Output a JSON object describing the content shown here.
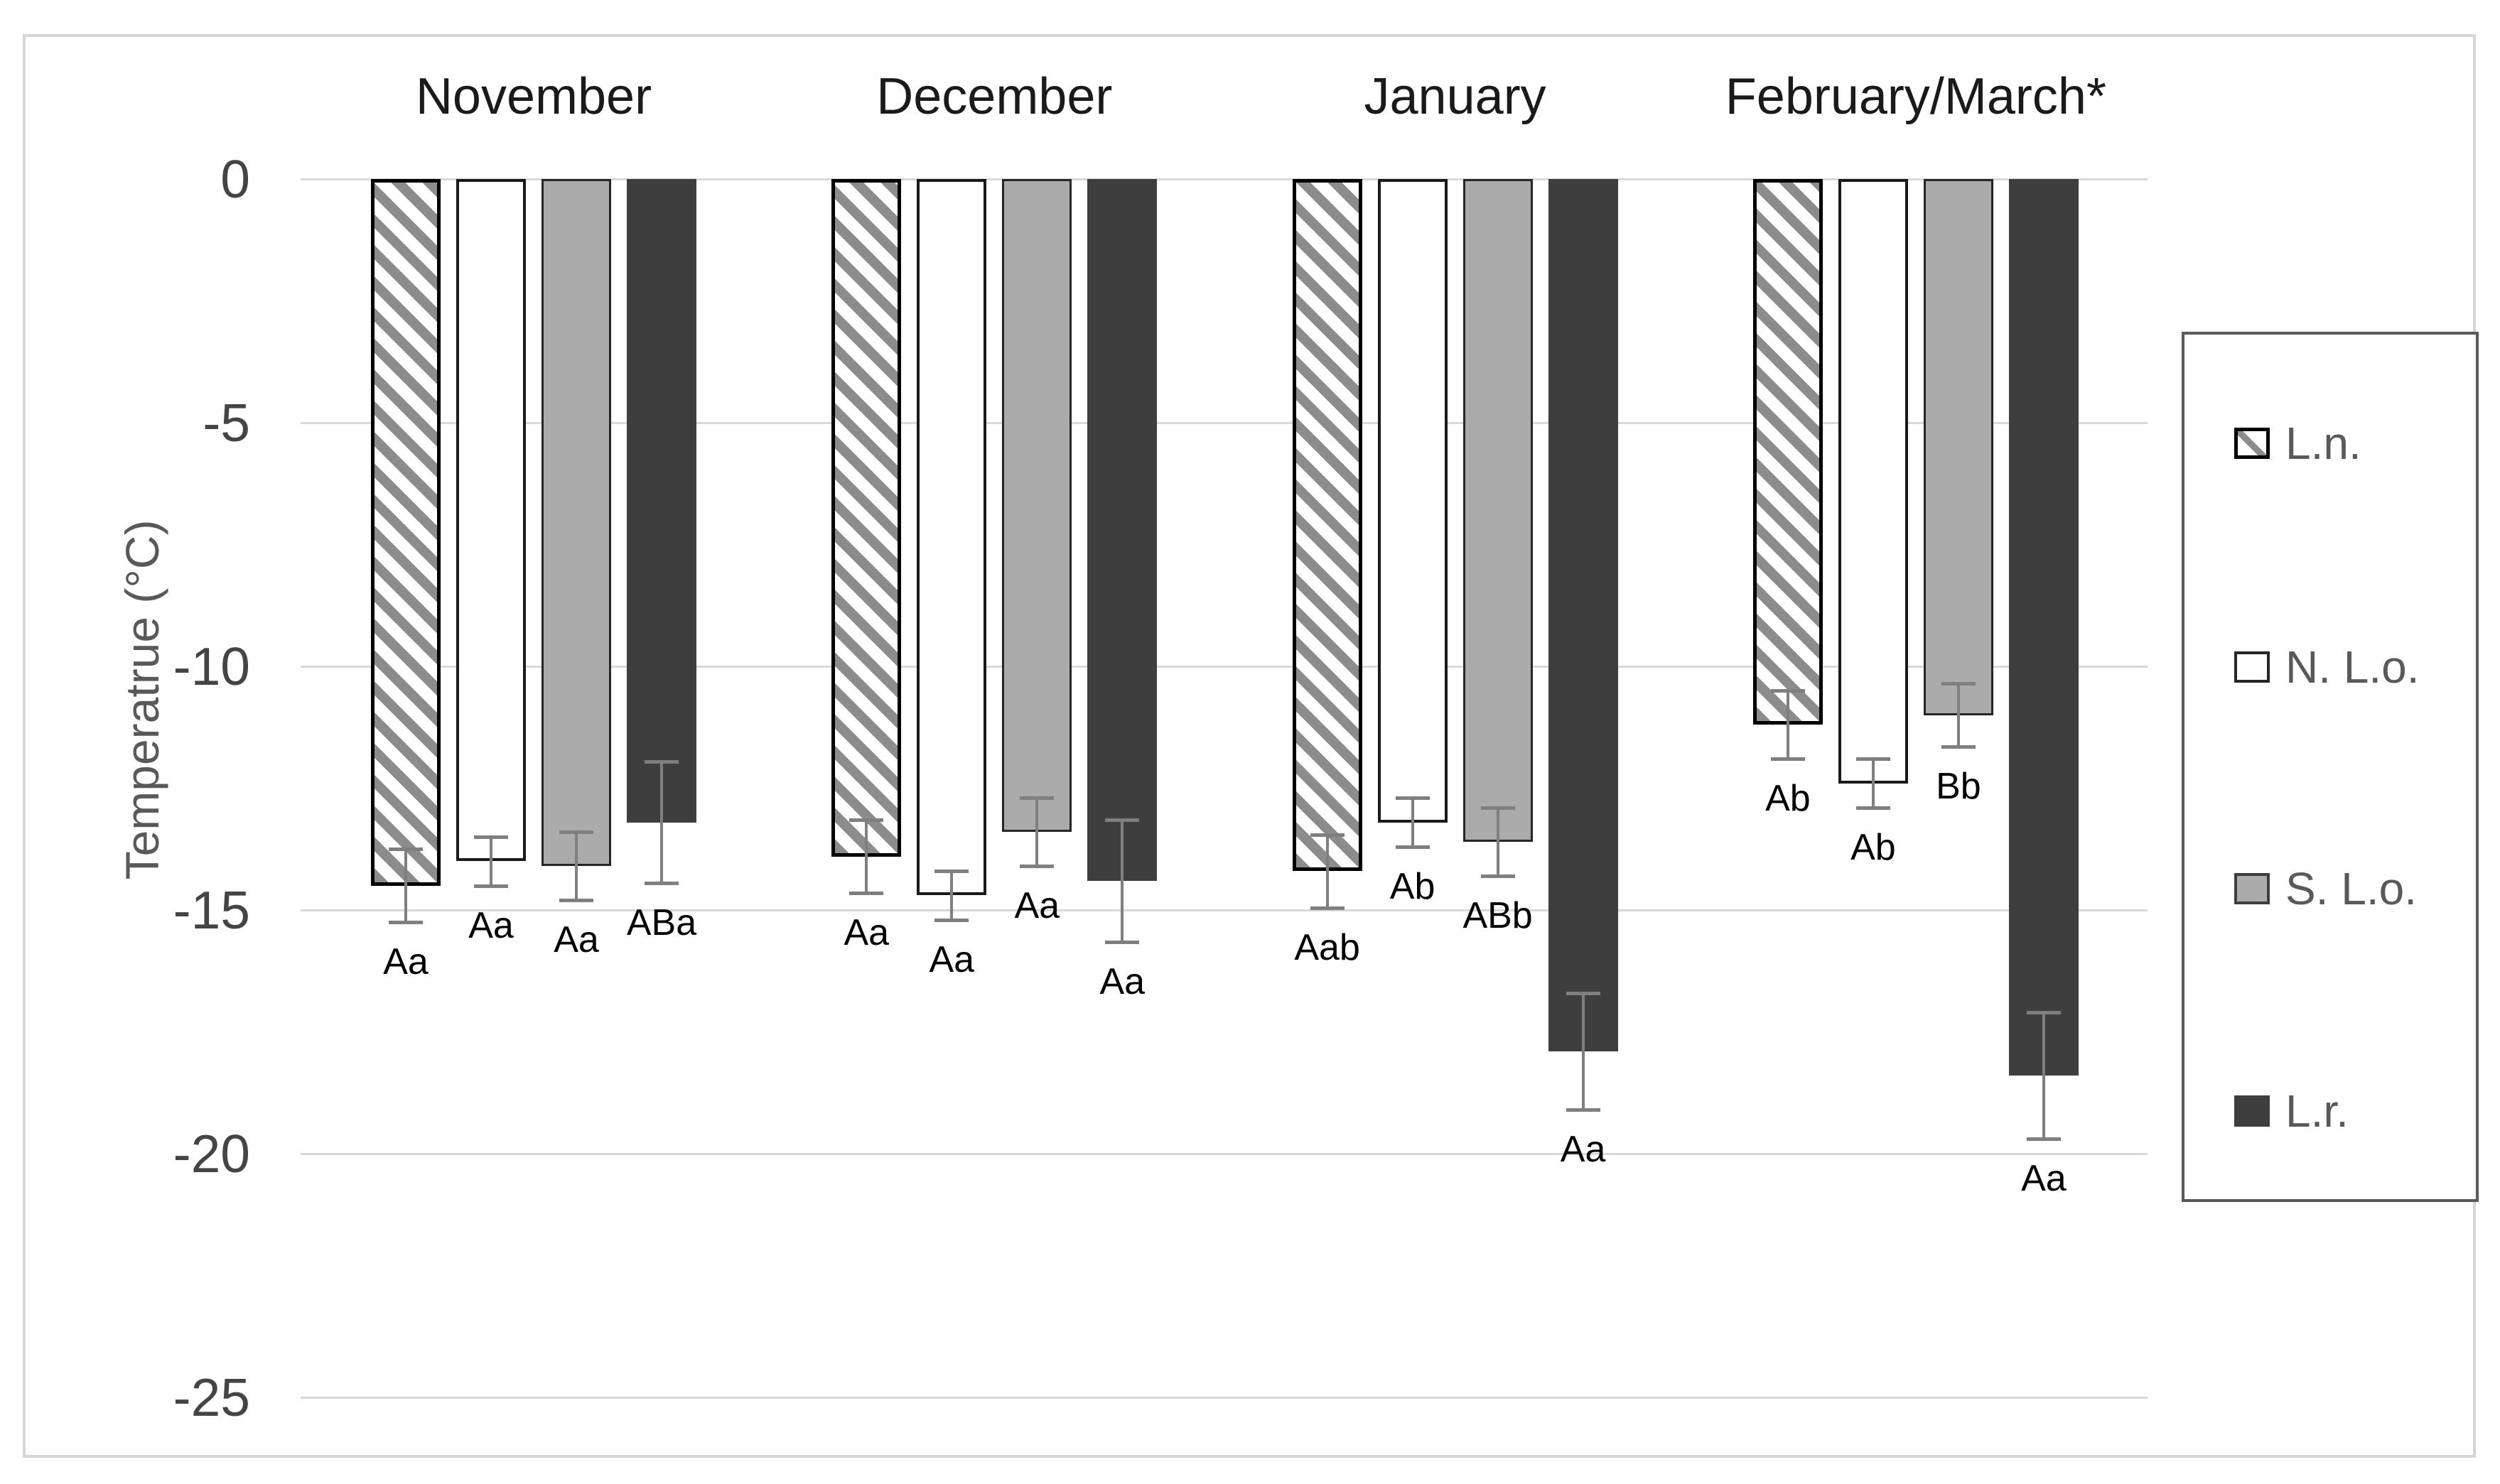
{
  "chart_data": {
    "type": "bar",
    "title": "",
    "xlabel": "",
    "ylabel": "Temperatrue (°C)",
    "ylim": [
      -26.3,
      0
    ],
    "yticks": [
      0,
      -5,
      -10,
      -15,
      -20,
      -25
    ],
    "grid": true,
    "legend_position": "right",
    "categories": [
      "November",
      "December",
      "January",
      "February/March*"
    ],
    "series": [
      {
        "name": "L.n.",
        "style": "hatched",
        "values": [
          -14.5,
          -13.9,
          -14.2,
          -11.2
        ],
        "errors": [
          0.75,
          0.75,
          0.75,
          0.7
        ],
        "stat_labels": [
          "Aa",
          "Aa",
          "Aab",
          "Ab"
        ]
      },
      {
        "name": "N. L.o.",
        "style": "white",
        "values": [
          -14.0,
          -14.7,
          -13.2,
          -12.4
        ],
        "errors": [
          0.5,
          0.5,
          0.5,
          0.5
        ],
        "stat_labels": [
          "Aa",
          "Aa",
          "Ab",
          "Ab"
        ]
      },
      {
        "name": "S. L.o.",
        "style": "gray",
        "values": [
          -14.1,
          -13.4,
          -13.6,
          -11.0
        ],
        "errors": [
          0.7,
          0.7,
          0.7,
          0.65
        ],
        "stat_labels": [
          "Aa",
          "Aa",
          "ABb",
          "Bb"
        ]
      },
      {
        "name": "L.r.",
        "style": "dark",
        "values": [
          -13.2,
          -14.4,
          -17.9,
          -18.4
        ],
        "errors": [
          1.25,
          1.25,
          1.2,
          1.3
        ],
        "stat_labels": [
          "ABa",
          "Aa",
          "Aa",
          "Aa"
        ]
      }
    ]
  },
  "colors": {
    "gridline": "#d9d9d9",
    "chart_border": "#d6d6d6",
    "tick_text": "#444444",
    "axis_title_text": "#595959",
    "month_text": "#1a1a1a",
    "stat_text": "#000000",
    "hatch_stripe": "#8c8c8c",
    "gray_fill": "#ababab",
    "dark_fill": "#3e3e3e",
    "error_bar": "#7f7f7f",
    "legend_text": "#595959"
  }
}
